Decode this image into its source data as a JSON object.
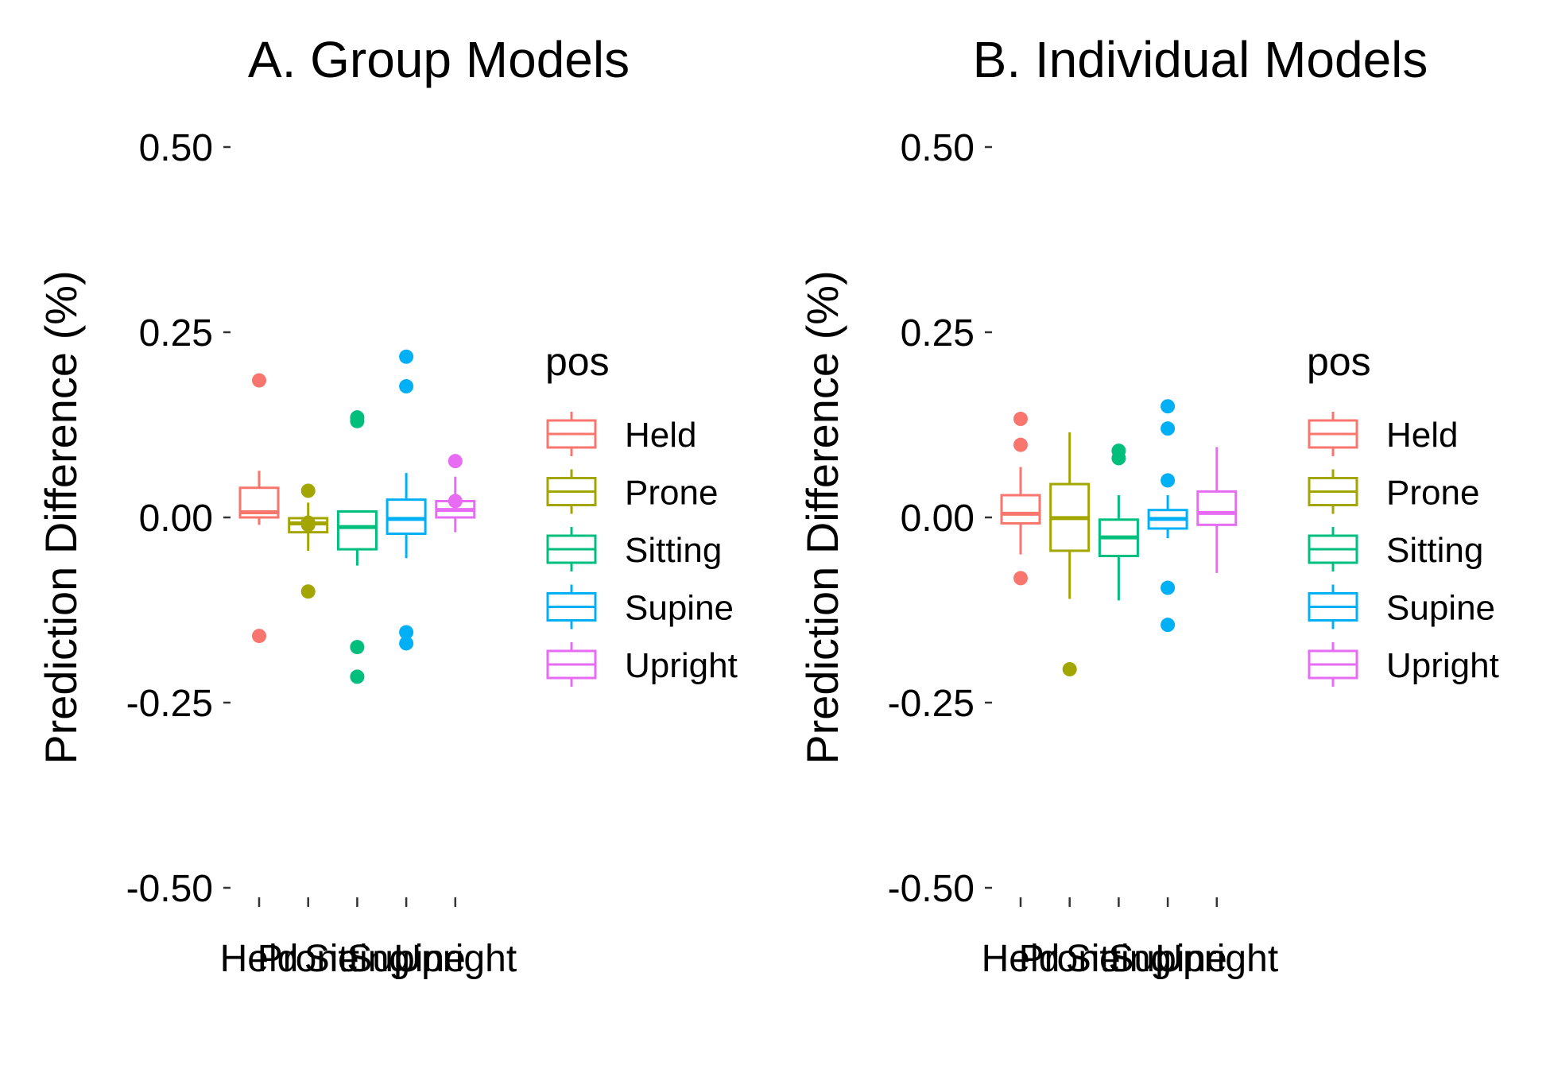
{
  "colors": {
    "Held": "#F8766D",
    "Prone": "#A3A500",
    "Sitting": "#00BF7D",
    "Supine": "#00B0F6",
    "Upright": "#E76BF3"
  },
  "chart_data": [
    {
      "type": "boxplot",
      "title": "A. Group Models",
      "ylabel": "Prediction Difference (%)",
      "xlabel": "",
      "ylim": [
        -0.5,
        0.5
      ],
      "yticks": [
        "0.50",
        "0.25",
        "0.00",
        "-0.25",
        "-0.50"
      ],
      "ytick_values": [
        0.5,
        0.25,
        0,
        -0.25,
        -0.5
      ],
      "categories": [
        "Held",
        "Prone",
        "Sitting",
        "Supine",
        "Upright"
      ],
      "legend": {
        "title": "pos",
        "position": "right",
        "entries": [
          "Held",
          "Prone",
          "Sitting",
          "Supine",
          "Upright"
        ]
      },
      "grid": false,
      "boxes": [
        {
          "name": "Held",
          "whisker_low": -0.01,
          "q1": 0.0,
          "median": 0.007,
          "q3": 0.04,
          "whisker_high": 0.063,
          "outliers": [
            0.185,
            -0.16
          ]
        },
        {
          "name": "Prone",
          "whisker_low": -0.045,
          "q1": -0.02,
          "median": -0.008,
          "q3": -0.001,
          "whisker_high": 0.02,
          "outliers": [
            0.036,
            -0.1,
            -0.01,
            -0.007
          ]
        },
        {
          "name": "Sitting",
          "whisker_low": -0.065,
          "q1": -0.043,
          "median": -0.013,
          "q3": 0.008,
          "whisker_high": 0.008,
          "outliers": [
            0.135,
            0.13,
            -0.175,
            -0.215
          ]
        },
        {
          "name": "Supine",
          "whisker_low": -0.055,
          "q1": -0.022,
          "median": -0.002,
          "q3": 0.024,
          "whisker_high": 0.06,
          "outliers": [
            0.217,
            0.177,
            -0.155,
            -0.17
          ]
        },
        {
          "name": "Upright",
          "whisker_low": -0.02,
          "q1": 0.0,
          "median": 0.01,
          "q3": 0.022,
          "whisker_high": 0.055,
          "outliers": [
            0.076,
            0.022
          ]
        }
      ]
    },
    {
      "type": "boxplot",
      "title": "B. Individual Models",
      "ylabel": "Prediction Difference (%)",
      "xlabel": "",
      "ylim": [
        -0.5,
        0.5
      ],
      "yticks": [
        "0.50",
        "0.25",
        "0.00",
        "-0.25",
        "-0.50"
      ],
      "ytick_values": [
        0.5,
        0.25,
        0,
        -0.25,
        -0.5
      ],
      "categories": [
        "Held",
        "Prone",
        "Sitting",
        "Supine",
        "Upright"
      ],
      "legend": {
        "title": "pos",
        "position": "right",
        "entries": [
          "Held",
          "Prone",
          "Sitting",
          "Supine",
          "Upright"
        ]
      },
      "grid": false,
      "boxes": [
        {
          "name": "Held",
          "whisker_low": -0.05,
          "q1": -0.008,
          "median": 0.005,
          "q3": 0.03,
          "whisker_high": 0.068,
          "outliers": [
            0.133,
            0.098,
            -0.082
          ]
        },
        {
          "name": "Prone",
          "whisker_low": -0.11,
          "q1": -0.045,
          "median": -0.001,
          "q3": 0.045,
          "whisker_high": 0.115,
          "outliers": [
            -0.205
          ]
        },
        {
          "name": "Sitting",
          "whisker_low": -0.112,
          "q1": -0.052,
          "median": -0.027,
          "q3": -0.003,
          "whisker_high": 0.03,
          "outliers": [
            0.09,
            0.08
          ]
        },
        {
          "name": "Supine",
          "whisker_low": -0.028,
          "q1": -0.015,
          "median": -0.002,
          "q3": 0.01,
          "whisker_high": 0.03,
          "outliers": [
            0.15,
            0.12,
            0.05,
            -0.095,
            -0.145
          ]
        },
        {
          "name": "Upright",
          "whisker_low": -0.075,
          "q1": -0.01,
          "median": 0.006,
          "q3": 0.035,
          "whisker_high": 0.095,
          "outliers": []
        }
      ]
    }
  ]
}
